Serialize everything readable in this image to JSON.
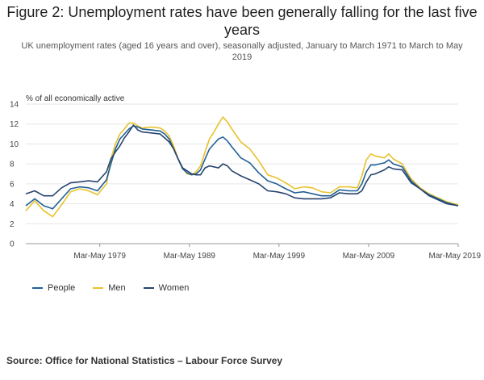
{
  "chart_data": {
    "type": "line",
    "title": "Figure 2: Unemployment rates have been generally falling for the last five years",
    "subtitle": "UK unemployment rates (aged 16 years and over), seasonally adjusted, January to March 1971 to March to May 2019",
    "ylabel": "% of all economically active",
    "xlabel": "",
    "x_range": [
      1971.0,
      2019.25
    ],
    "ylim": [
      0,
      14
    ],
    "y_ticks": [
      "0",
      "2",
      "4",
      "6",
      "8",
      "10",
      "12",
      "14"
    ],
    "x_tick_labels": [
      "Mar-May 1979",
      "Mar-May 1989",
      "Mar-May 1999",
      "Mar-May 2009",
      "Mar-May 2019"
    ],
    "x_tick_positions": [
      1979.25,
      1989.25,
      1999.25,
      2009.25,
      2019.25
    ],
    "grid": true,
    "legend_position": "bottom-left",
    "x": [
      1971,
      1972,
      1973,
      1974,
      1975,
      1976,
      1977,
      1978,
      1979,
      1980,
      1980.5,
      1981,
      1981.5,
      1982,
      1982.5,
      1983,
      1983.5,
      1984,
      1985,
      1986,
      1986.5,
      1987,
      1987.5,
      1988,
      1988.5,
      1989,
      1989.5,
      1990,
      1990.5,
      1991,
      1991.5,
      1992,
      1992.5,
      1993,
      1993.5,
      1994,
      1995,
      1996,
      1997,
      1998,
      1999,
      2000,
      2001,
      2002,
      2003,
      2004,
      2005,
      2006,
      2007,
      2008,
      2008.5,
      2009,
      2009.5,
      2010,
      2011,
      2011.5,
      2012,
      2013,
      2014,
      2015,
      2016,
      2017,
      2018,
      2019.25
    ],
    "series": [
      {
        "name": "People",
        "color": "#206095",
        "values": [
          3.8,
          4.5,
          3.8,
          3.5,
          4.5,
          5.5,
          5.7,
          5.6,
          5.3,
          6.4,
          8.0,
          9.5,
          10.5,
          11.0,
          11.5,
          11.8,
          11.7,
          11.5,
          11.4,
          11.3,
          11.0,
          10.5,
          9.5,
          8.5,
          7.5,
          7.1,
          6.9,
          7.0,
          7.4,
          8.5,
          9.5,
          10.0,
          10.5,
          10.7,
          10.3,
          9.7,
          8.6,
          8.1,
          7.1,
          6.3,
          6.0,
          5.5,
          5.1,
          5.2,
          5.0,
          4.8,
          4.8,
          5.4,
          5.3,
          5.3,
          6.0,
          7.2,
          7.9,
          7.9,
          8.1,
          8.4,
          8.0,
          7.7,
          6.3,
          5.5,
          4.9,
          4.5,
          4.1,
          3.8
        ]
      },
      {
        "name": "Men",
        "color": "#e8c22a",
        "values": [
          3.3,
          4.3,
          3.3,
          2.7,
          3.9,
          5.2,
          5.5,
          5.3,
          4.9,
          6.0,
          8.5,
          10.0,
          11.0,
          11.5,
          12.1,
          12.1,
          11.8,
          11.6,
          11.7,
          11.6,
          11.3,
          10.8,
          9.8,
          8.5,
          7.6,
          7.0,
          6.9,
          7.2,
          7.8,
          9.2,
          10.5,
          11.2,
          12.0,
          12.7,
          12.2,
          11.5,
          10.2,
          9.5,
          8.3,
          6.9,
          6.6,
          6.1,
          5.5,
          5.7,
          5.6,
          5.2,
          5.1,
          5.7,
          5.7,
          5.6,
          6.8,
          8.4,
          9.0,
          8.8,
          8.6,
          9.0,
          8.5,
          8.0,
          6.5,
          5.6,
          5.0,
          4.6,
          4.2,
          3.9
        ]
      },
      {
        "name": "Women",
        "color": "#27446f",
        "values": [
          5.0,
          5.3,
          4.8,
          4.8,
          5.6,
          6.1,
          6.2,
          6.3,
          6.2,
          7.2,
          8.5,
          9.2,
          9.8,
          10.6,
          11.2,
          11.9,
          11.4,
          11.2,
          11.1,
          11.0,
          10.6,
          10.2,
          9.5,
          8.5,
          7.6,
          7.3,
          7.0,
          6.9,
          6.9,
          7.6,
          7.8,
          7.7,
          7.6,
          8.0,
          7.8,
          7.3,
          6.8,
          6.4,
          6.0,
          5.3,
          5.2,
          5.0,
          4.6,
          4.5,
          4.5,
          4.5,
          4.6,
          5.1,
          5.0,
          5.0,
          5.3,
          6.2,
          6.9,
          7.0,
          7.4,
          7.7,
          7.5,
          7.4,
          6.1,
          5.5,
          4.8,
          4.4,
          4.0,
          3.8
        ]
      }
    ]
  },
  "source": "Source: Office for National Statistics – Labour Force Survey"
}
